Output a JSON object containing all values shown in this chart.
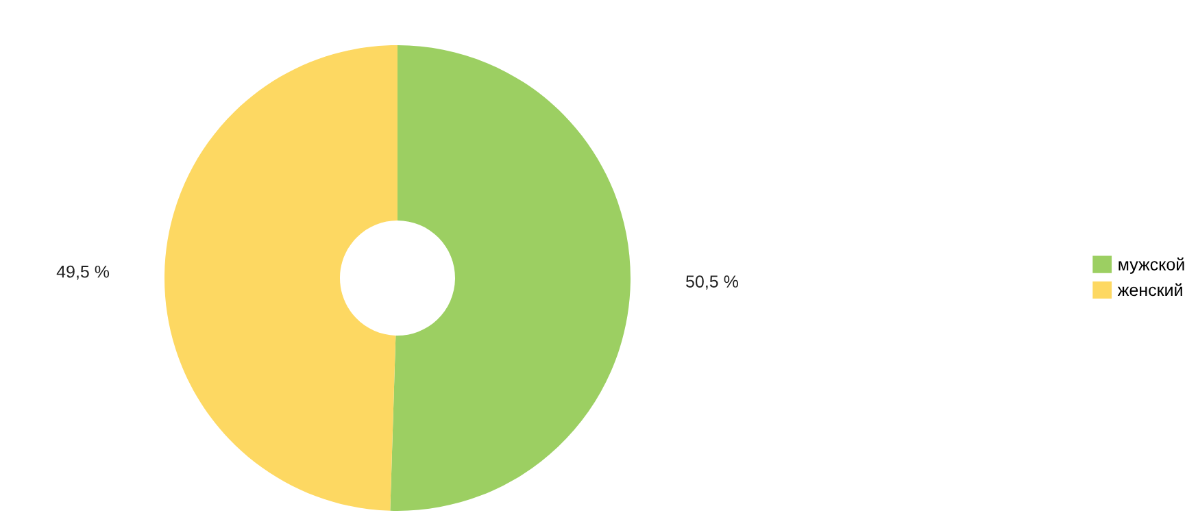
{
  "chart_data": {
    "type": "donut",
    "categories": [
      "мужской",
      "женский"
    ],
    "values": [
      50.5,
      49.5
    ],
    "colors": [
      "#9ccf62",
      "#fdd862"
    ],
    "value_labels": [
      "50,5 %",
      "49,5 %"
    ],
    "legend": "right"
  }
}
